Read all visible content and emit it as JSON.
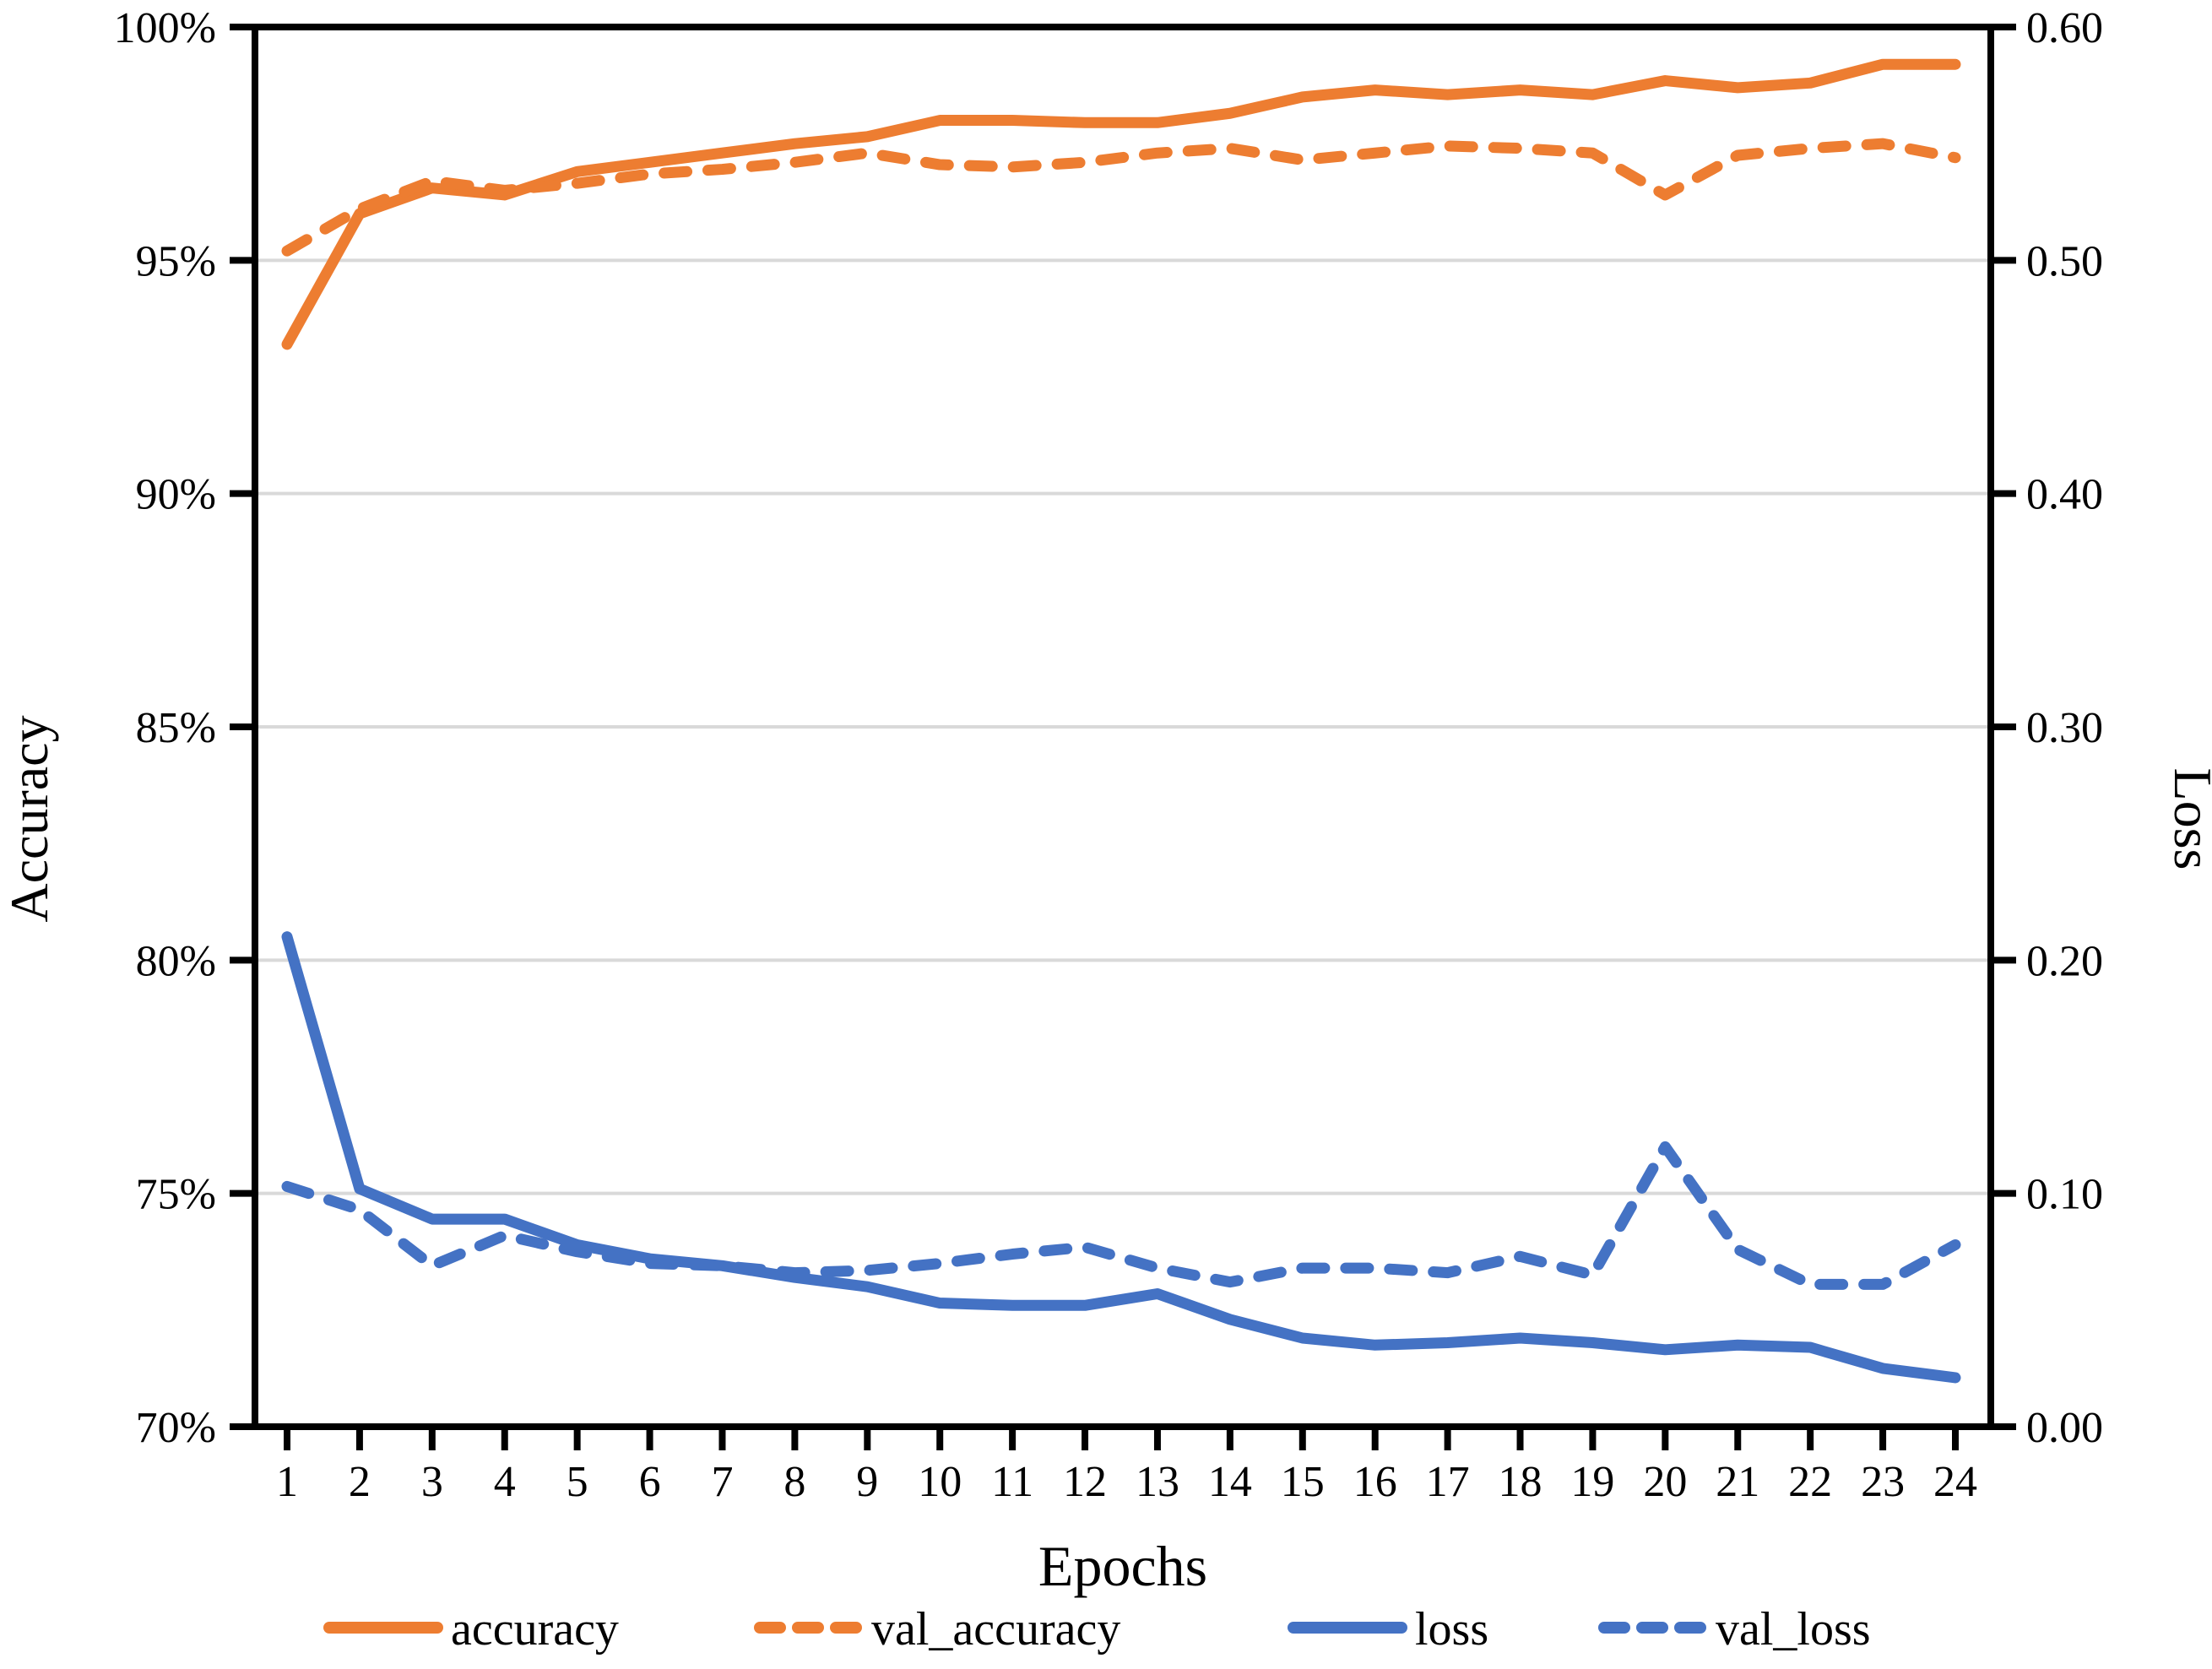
{
  "chart_data": {
    "type": "line",
    "title": "",
    "xlabel": "Epochs",
    "ylabel_left": "Accuracy",
    "ylabel_right": "Loss",
    "x": [
      1,
      2,
      3,
      4,
      5,
      6,
      7,
      8,
      9,
      10,
      11,
      12,
      13,
      14,
      15,
      16,
      17,
      18,
      19,
      20,
      21,
      22,
      23,
      24
    ],
    "x_tick_labels": [
      "1",
      "2",
      "3",
      "4",
      "5",
      "6",
      "7",
      "8",
      "9",
      "10",
      "11",
      "12",
      "13",
      "14",
      "15",
      "16",
      "17",
      "18",
      "19",
      "20",
      "21",
      "22",
      "23",
      "24"
    ],
    "left_axis": {
      "min": 70,
      "max": 100,
      "tick_values": [
        100,
        95,
        90,
        85,
        80,
        75,
        70
      ],
      "tick_labels": [
        "100%",
        "95%",
        "90%",
        "85%",
        "80%",
        "75%",
        "70%"
      ]
    },
    "right_axis": {
      "min": 0.0,
      "max": 0.6,
      "tick_values": [
        0.6,
        0.5,
        0.4,
        0.3,
        0.2,
        0.1,
        0.0
      ],
      "tick_labels": [
        "0.60",
        "0.50",
        "0.40",
        "0.30",
        "0.20",
        "0.10",
        "0.00"
      ]
    },
    "grid": {
      "show": true,
      "color": "#D9D9D9",
      "left_axis_values": [
        95,
        90,
        85,
        80,
        75
      ]
    },
    "series": [
      {
        "name": "accuracy",
        "axis": "left",
        "style": "solid",
        "color": "#ED7D31",
        "values": [
          93.2,
          96.0,
          96.55,
          96.4,
          96.9,
          97.1,
          97.3,
          97.5,
          97.65,
          98.0,
          98.0,
          97.95,
          97.95,
          98.15,
          98.5,
          98.65,
          98.55,
          98.65,
          98.55,
          98.85,
          98.7,
          98.8,
          99.2,
          99.2
        ]
      },
      {
        "name": "val_accuracy",
        "axis": "left",
        "style": "dashed",
        "color": "#ED7D31",
        "values": [
          95.2,
          96.1,
          96.7,
          96.5,
          96.65,
          96.85,
          96.95,
          97.1,
          97.3,
          97.05,
          97.0,
          97.1,
          97.3,
          97.4,
          97.15,
          97.3,
          97.45,
          97.4,
          97.3,
          96.4,
          97.25,
          97.4,
          97.5,
          97.2
        ]
      },
      {
        "name": "loss",
        "axis": "right",
        "style": "solid",
        "color": "#4472C4",
        "values": [
          0.21,
          0.102,
          0.089,
          0.089,
          0.078,
          0.072,
          0.069,
          0.064,
          0.06,
          0.053,
          0.052,
          0.052,
          0.057,
          0.046,
          0.038,
          0.035,
          0.036,
          0.038,
          0.036,
          0.033,
          0.035,
          0.034,
          0.025,
          0.021
        ]
      },
      {
        "name": "val_loss",
        "axis": "right",
        "style": "dashed",
        "color": "#4472C4",
        "values": [
          0.103,
          0.093,
          0.069,
          0.082,
          0.075,
          0.07,
          0.069,
          0.066,
          0.067,
          0.07,
          0.074,
          0.077,
          0.068,
          0.062,
          0.068,
          0.068,
          0.066,
          0.073,
          0.065,
          0.12,
          0.076,
          0.061,
          0.061,
          0.078
        ]
      }
    ],
    "legend": {
      "position": "bottom",
      "entries": [
        "accuracy",
        "val_accuracy",
        "loss",
        "val_loss"
      ]
    }
  },
  "colors": {
    "accent_orange": "#ED7D31",
    "accent_blue": "#4472C4",
    "gridline": "#D9D9D9",
    "axis": "#000000",
    "background": "#FFFFFF"
  }
}
